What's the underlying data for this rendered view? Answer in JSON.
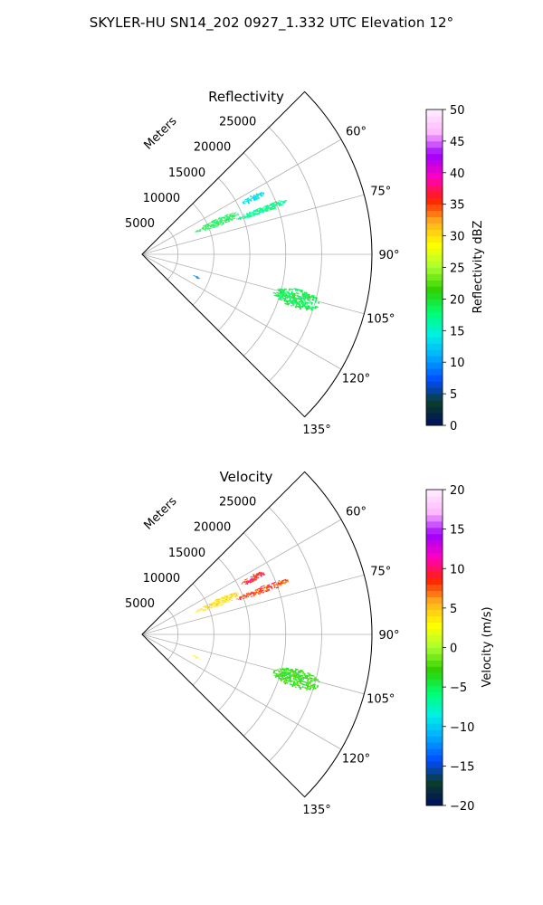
{
  "figure": {
    "title": "SKYLER-HU  SN14_202  0927_1.332 UTC Elevation 12°"
  },
  "chart_data": [
    {
      "type": "heatmap",
      "subtype": "polar-ppi-sector",
      "title": "Reflectivity",
      "range_label": "Meters",
      "range_ticks": [
        5000,
        10000,
        15000,
        20000,
        25000
      ],
      "range_tick_labels": [
        "5000",
        "10000",
        "15000",
        "20000",
        "25000"
      ],
      "range_max": 32000,
      "azimuth_range": [
        45,
        135
      ],
      "azimuth_ticks": [
        60,
        75,
        90,
        105,
        120,
        135
      ],
      "azimuth_tick_labels": [
        "60°",
        "75°",
        "90°",
        "105°",
        "120°",
        "135°"
      ],
      "grid": true,
      "colorbar": {
        "label": "Reflectivity dBZ",
        "min": 0,
        "max": 50,
        "ticks": [
          0,
          5,
          10,
          15,
          20,
          25,
          30,
          35,
          40,
          45,
          50
        ],
        "tick_labels": [
          "0",
          "5",
          "10",
          "15",
          "20",
          "25",
          "30",
          "35",
          "40",
          "45",
          "50"
        ],
        "stops": [
          "#001060",
          "#0a3c2a",
          "#004cff",
          "#00a8ff",
          "#00f0e6",
          "#00ff70",
          "#30d000",
          "#a8ff30",
          "#ffff00",
          "#ffb020",
          "#ff2000",
          "#ff00c0",
          "#a000ff",
          "#ffb8ff",
          "#fff0ff"
        ]
      },
      "echo_regions": [
        {
          "az_start": 61.5,
          "az_end": 64.5,
          "r_start": 15500,
          "r_end": 19000,
          "value": 14
        },
        {
          "az_start": 64.5,
          "az_end": 69.5,
          "r_start": 8000,
          "r_end": 14500,
          "value": 19
        },
        {
          "az_start": 68.0,
          "az_end": 71.0,
          "r_start": 14000,
          "r_end": 21500,
          "value": 17
        },
        {
          "az_start": 102.5,
          "az_end": 109.0,
          "r_start": 19000,
          "r_end": 25500,
          "value": 19
        },
        {
          "az_start": 111.5,
          "az_end": 113.5,
          "r_start": 7500,
          "r_end": 8700,
          "value": 10
        }
      ]
    },
    {
      "type": "heatmap",
      "subtype": "polar-ppi-sector",
      "title": "Velocity",
      "range_label": "Meters",
      "range_ticks": [
        5000,
        10000,
        15000,
        20000,
        25000
      ],
      "range_tick_labels": [
        "5000",
        "10000",
        "15000",
        "20000",
        "25000"
      ],
      "range_max": 32000,
      "azimuth_range": [
        45,
        135
      ],
      "azimuth_ticks": [
        60,
        75,
        90,
        105,
        120,
        135
      ],
      "azimuth_tick_labels": [
        "60°",
        "75°",
        "90°",
        "105°",
        "120°",
        "135°"
      ],
      "grid": true,
      "colorbar": {
        "label": "Velocity (m/s)",
        "min": -20,
        "max": 20,
        "ticks": [
          -20,
          -15,
          -10,
          -5,
          0,
          5,
          10,
          15,
          20
        ],
        "tick_labels": [
          "−20",
          "−15",
          "−10",
          "−5",
          "0",
          "5",
          "10",
          "15",
          "20"
        ],
        "stops": [
          "#001060",
          "#0a3c2a",
          "#004cff",
          "#00a8ff",
          "#00f0e6",
          "#00ff70",
          "#30d000",
          "#a8ff30",
          "#ffff00",
          "#ffb020",
          "#ff2000",
          "#ff00c0",
          "#a000ff",
          "#ffb8ff",
          "#fff0ff"
        ]
      },
      "echo_regions": [
        {
          "az_start": 61.5,
          "az_end": 64.5,
          "r_start": 15500,
          "r_end": 19000,
          "value": 9
        },
        {
          "az_start": 64.5,
          "az_end": 69.5,
          "r_start": 8000,
          "r_end": 14500,
          "value": 4
        },
        {
          "az_start": 68.0,
          "az_end": 71.0,
          "r_start": 14000,
          "r_end": 21500,
          "value": 8
        },
        {
          "az_start": 102.5,
          "az_end": 109.0,
          "r_start": 19000,
          "r_end": 25500,
          "value": -3
        },
        {
          "az_start": 111.5,
          "az_end": 113.5,
          "r_start": 7500,
          "r_end": 8700,
          "value": 3
        }
      ]
    }
  ]
}
